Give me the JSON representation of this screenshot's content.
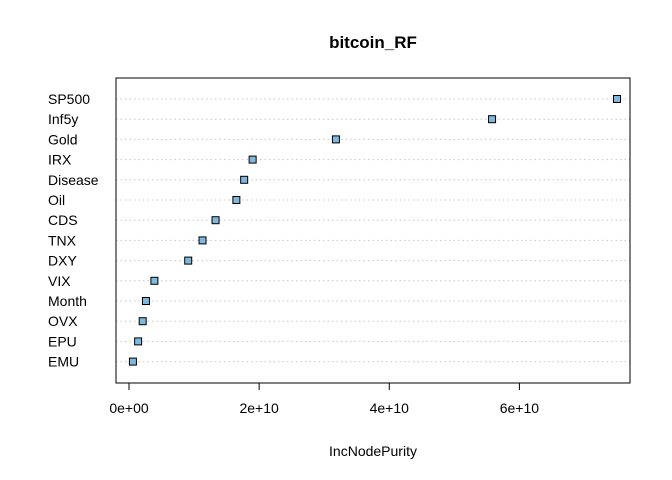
{
  "chart_data": {
    "type": "scatter",
    "title": "bitcoin_RF",
    "xlabel": "IncNodePurity",
    "ylabel": "",
    "categories": [
      "SP500",
      "Inf5y",
      "Gold",
      "IRX",
      "Disease",
      "Oil",
      "CDS",
      "TNX",
      "DXY",
      "VIX",
      "Month",
      "OVX",
      "EPU",
      "EMU"
    ],
    "values": [
      75000000000,
      55800000000,
      31800000000,
      19000000000,
      17700000000,
      16500000000,
      13300000000,
      11300000000,
      9100000000,
      3900000000,
      2600000000,
      2100000000,
      1400000000,
      600000000
    ],
    "xticks": [
      0,
      20000000000,
      40000000000,
      60000000000
    ],
    "xtick_labels": [
      "0e+00",
      "2e+10",
      "4e+10",
      "6e+10"
    ],
    "xlim": [
      -2000000000,
      77000000000
    ],
    "grid": "dotted-horizontal",
    "point_color": "#7fb8dc"
  }
}
